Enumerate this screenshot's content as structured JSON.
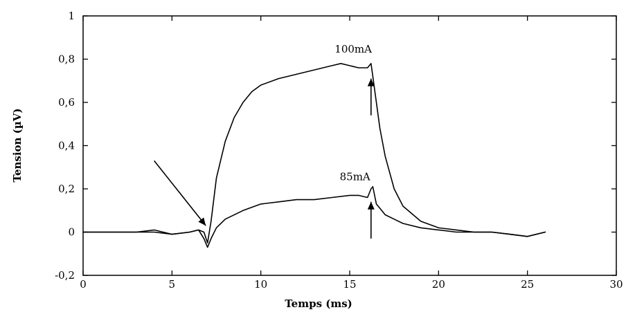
{
  "chart_data": {
    "type": "line",
    "title": "",
    "xlabel": "Temps  (ms)",
    "ylabel": "Tension  (µV)",
    "xlim": [
      0,
      30
    ],
    "ylim": [
      -0.2,
      1
    ],
    "x_ticks": [
      0,
      5,
      10,
      15,
      20,
      25,
      30
    ],
    "x_tick_labels": [
      "0",
      "5",
      "10",
      "15",
      "20",
      "25",
      "30"
    ],
    "y_ticks": [
      -0.2,
      0,
      0.2,
      0.4,
      0.6,
      0.8,
      1
    ],
    "y_tick_labels": [
      "-0,2",
      "0",
      "0,2",
      "0,4",
      "0,6",
      "0,8",
      "1"
    ],
    "grid": false,
    "series": [
      {
        "name": "100mA",
        "x": [
          0,
          1,
          2,
          3,
          4,
          5,
          6,
          6.5,
          6.8,
          7.0,
          7.2,
          7.5,
          8,
          8.5,
          9,
          9.5,
          10,
          11,
          12,
          13,
          14,
          14.5,
          15,
          15.5,
          16,
          16.2,
          16.3,
          16.5,
          16.7,
          17,
          17.5,
          18,
          19,
          20,
          21,
          22,
          23,
          24,
          25,
          26
        ],
        "y": [
          0.0,
          0.0,
          0.0,
          0.0,
          0.0,
          -0.01,
          0.0,
          0.01,
          0.0,
          -0.05,
          0.05,
          0.25,
          0.42,
          0.53,
          0.6,
          0.65,
          0.68,
          0.71,
          0.73,
          0.75,
          0.77,
          0.78,
          0.77,
          0.76,
          0.76,
          0.78,
          0.72,
          0.6,
          0.48,
          0.35,
          0.2,
          0.12,
          0.05,
          0.02,
          0.01,
          0.0,
          0.0,
          -0.01,
          -0.02,
          0.0
        ]
      },
      {
        "name": "85mA",
        "x": [
          0,
          1,
          2,
          3,
          4,
          5,
          6,
          6.5,
          6.8,
          7.0,
          7.2,
          7.5,
          8,
          9,
          10,
          11,
          12,
          13,
          14,
          15,
          15.5,
          16,
          16.2,
          16.3,
          16.5,
          16.8,
          17,
          17.5,
          18,
          19,
          20,
          21,
          22,
          23,
          24,
          25,
          26
        ],
        "y": [
          0.0,
          0.0,
          0.0,
          0.0,
          0.01,
          -0.01,
          0.0,
          0.01,
          -0.03,
          -0.07,
          -0.03,
          0.02,
          0.06,
          0.1,
          0.13,
          0.14,
          0.15,
          0.15,
          0.16,
          0.17,
          0.17,
          0.16,
          0.2,
          0.21,
          0.13,
          0.1,
          0.08,
          0.06,
          0.04,
          0.02,
          0.01,
          0.0,
          0.0,
          0.0,
          -0.01,
          -0.02,
          0.0
        ]
      }
    ],
    "annotations": [
      {
        "text": "100mA",
        "x": 15.2,
        "y": 0.83
      },
      {
        "text": "85mA",
        "x": 15.3,
        "y": 0.24
      }
    ],
    "arrows": [
      {
        "from": [
          4,
          0.33
        ],
        "to": [
          6.9,
          0.03
        ]
      },
      {
        "from": [
          16.2,
          0.54
        ],
        "to": [
          16.2,
          0.71
        ]
      },
      {
        "from": [
          16.2,
          -0.03
        ],
        "to": [
          16.2,
          0.14
        ]
      }
    ]
  }
}
